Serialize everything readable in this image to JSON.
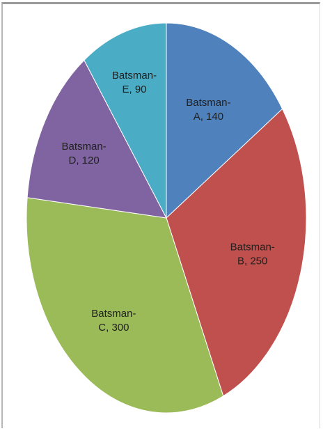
{
  "chart_data": {
    "type": "pie",
    "title": "",
    "slices": [
      {
        "line1": "Batsman-",
        "line2": "A, 140",
        "label": "Batsman-A",
        "value": 140,
        "color": "#4f81bd"
      },
      {
        "line1": "Batsman-",
        "line2": "B, 250",
        "label": "Batsman-B",
        "value": 250,
        "color": "#c0504d"
      },
      {
        "line1": "Batsman-",
        "line2": "C, 300",
        "label": "Batsman-C",
        "value": 300,
        "color": "#9bbb59"
      },
      {
        "line1": "Batsman-",
        "line2": "D, 120",
        "label": "Batsman-D",
        "value": 120,
        "color": "#8064a2"
      },
      {
        "line1": "Batsman-",
        "line2": "E, 90",
        "label": "Batsman-E",
        "value": 90,
        "color": "#4bacc6"
      }
    ],
    "legend": "none",
    "start_angle": "12 o'clock",
    "direction": "clockwise"
  }
}
